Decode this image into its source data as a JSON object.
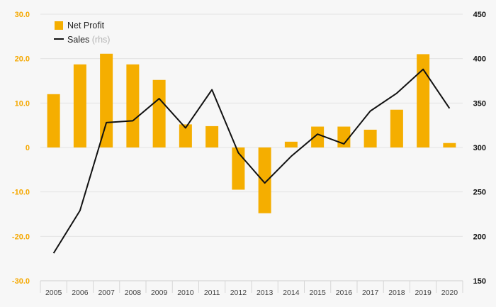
{
  "chart_data": {
    "type": "bar",
    "categories": [
      "2005",
      "2006",
      "2007",
      "2008",
      "2009",
      "2010",
      "2011",
      "2012",
      "2013",
      "2014",
      "2015",
      "2016",
      "2017",
      "2018",
      "2019",
      "2020"
    ],
    "series": [
      {
        "name": "Net Profit",
        "type": "bar",
        "axis": "left",
        "color": "#f5ae00",
        "values": [
          12.0,
          18.7,
          21.1,
          18.7,
          15.2,
          5.2,
          4.8,
          -9.5,
          -14.8,
          1.3,
          4.7,
          4.7,
          4.0,
          8.5,
          21.0,
          1.0
        ]
      },
      {
        "name": "Sales",
        "type": "line",
        "axis": "right",
        "color": "#111111",
        "values": [
          181,
          229,
          328,
          330,
          355,
          322,
          365,
          294,
          260,
          290,
          315,
          304,
          341,
          361,
          388,
          344
        ]
      }
    ],
    "legend": {
      "items": [
        {
          "label": "Net Profit",
          "sub": ""
        },
        {
          "label": "Sales",
          "sub": "(rhs)"
        }
      ],
      "position": "top-left"
    },
    "y_left": {
      "ylim": [
        -30,
        30
      ],
      "ticks": [
        30,
        20,
        10,
        0,
        -10,
        -20,
        -30
      ],
      "tick_labels": [
        "30.0",
        "20.0",
        "10.0",
        "0",
        "-10.0",
        "-20.0",
        "-30.0"
      ]
    },
    "y_right": {
      "ylim": [
        150,
        450
      ],
      "ticks": [
        450,
        400,
        350,
        300,
        250,
        200,
        150
      ],
      "tick_labels": [
        "450",
        "400",
        "350",
        "300",
        "250",
        "200",
        "150"
      ]
    },
    "grid": true,
    "title": "",
    "xlabel": "",
    "ylabel": ""
  }
}
